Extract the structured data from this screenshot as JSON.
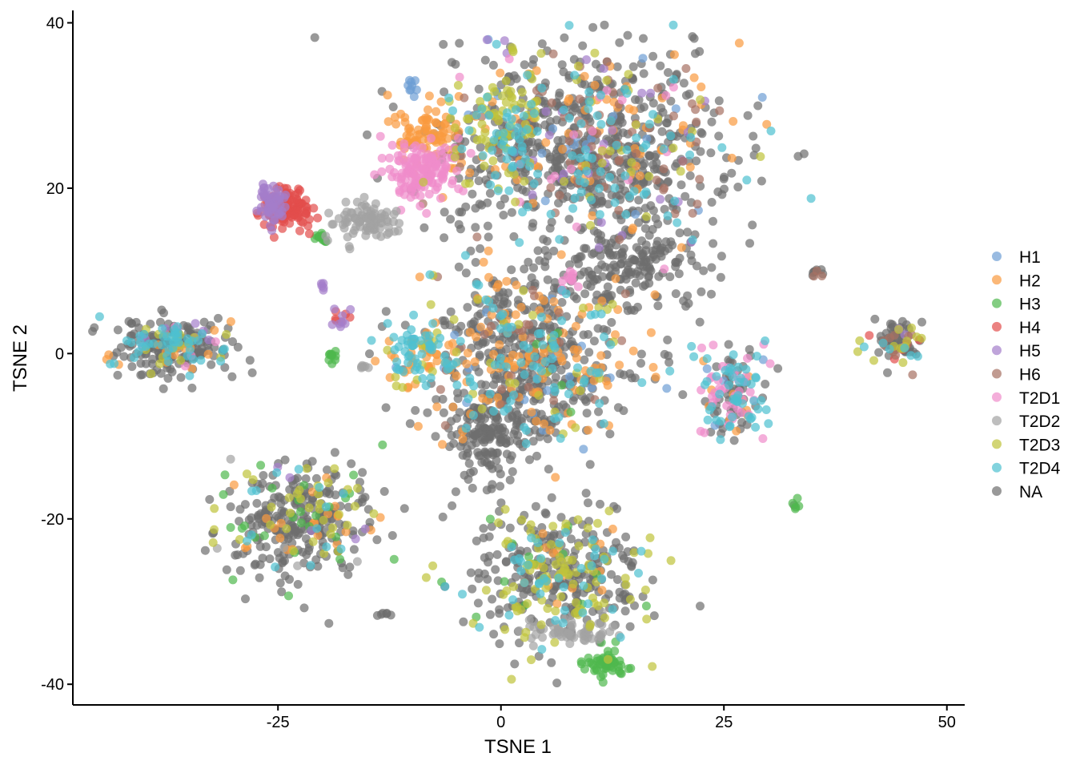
{
  "chart_data": {
    "type": "scatter",
    "title": "",
    "xlabel": "TSNE 1",
    "ylabel": "TSNE 2",
    "xlim": [
      -48,
      52
    ],
    "ylim": [
      -42.5,
      41.5
    ],
    "x_ticks": [
      -25,
      0,
      25,
      50
    ],
    "y_ticks": [
      -40,
      -20,
      0,
      20,
      40
    ],
    "x_tick_labels": [
      "-25",
      "0",
      "25",
      "50"
    ],
    "y_tick_labels": [
      "-40",
      "-20",
      "0",
      "20",
      "40"
    ],
    "grid": false,
    "legend_position": "right",
    "point_alpha": 0.7,
    "series": [
      {
        "name": "H1",
        "color": "#6d9ed4"
      },
      {
        "name": "H2",
        "color": "#f99a3e"
      },
      {
        "name": "H3",
        "color": "#4fb84d"
      },
      {
        "name": "H4",
        "color": "#e24d4b"
      },
      {
        "name": "H5",
        "color": "#a47dcb"
      },
      {
        "name": "H6",
        "color": "#a77062"
      },
      {
        "name": "T2D1",
        "color": "#ef8ccb"
      },
      {
        "name": "T2D2",
        "color": "#a2a2a2"
      },
      {
        "name": "T2D3",
        "color": "#bfc33b"
      },
      {
        "name": "T2D4",
        "color": "#4dc0d0"
      },
      {
        "name": "NA",
        "color": "#6e6e6e"
      }
    ],
    "clusters": [
      {
        "x": 10,
        "y": 25,
        "sx": 8,
        "sy": 6,
        "n": 900,
        "mix": {
          "NA": 0.62,
          "H2": 0.08,
          "T2D4": 0.1,
          "T2D3": 0.05,
          "H6": 0.08,
          "H1": 0.02,
          "T2D1": 0.02,
          "H5": 0.03
        }
      },
      {
        "x": 0,
        "y": 27,
        "sx": 2.5,
        "sy": 4,
        "n": 120,
        "mix": {
          "T2D3": 0.45,
          "T2D4": 0.2,
          "NA": 0.35
        }
      },
      {
        "x": 14,
        "y": 11,
        "sx": 4,
        "sy": 2.5,
        "n": 180,
        "mix": {
          "NA": 1.0
        }
      },
      {
        "x": 3,
        "y": 0,
        "sx": 6,
        "sy": 5,
        "n": 650,
        "mix": {
          "NA": 0.55,
          "T2D4": 0.12,
          "H2": 0.2,
          "T2D3": 0.05,
          "H1": 0.03,
          "H3": 0.02,
          "H6": 0.03
        }
      },
      {
        "x": -1,
        "y": -10,
        "sx": 2.5,
        "sy": 3,
        "n": 180,
        "mix": {
          "NA": 1.0
        }
      },
      {
        "x": -9,
        "y": 0,
        "sx": 2,
        "sy": 2,
        "n": 90,
        "mix": {
          "T2D4": 0.55,
          "T2D3": 0.15,
          "H2": 0.3
        }
      },
      {
        "x": -9,
        "y": 22,
        "sx": 2.2,
        "sy": 1.8,
        "n": 150,
        "mix": {
          "T2D1": 1.0
        }
      },
      {
        "x": -8,
        "y": 26,
        "sx": 1.8,
        "sy": 1.8,
        "n": 80,
        "mix": {
          "H2": 1.0
        }
      },
      {
        "x": -24,
        "y": 17.5,
        "sx": 1.4,
        "sy": 1.3,
        "n": 120,
        "mix": {
          "H4": 1.0
        }
      },
      {
        "x": -26,
        "y": 18,
        "sx": 0.8,
        "sy": 1.2,
        "n": 60,
        "mix": {
          "H5": 1.0
        }
      },
      {
        "x": -15,
        "y": 16,
        "sx": 1.8,
        "sy": 1.0,
        "n": 90,
        "mix": {
          "T2D2": 1.0
        }
      },
      {
        "x": -37,
        "y": 1,
        "sx": 3.5,
        "sy": 1.6,
        "n": 260,
        "mix": {
          "NA": 0.65,
          "T2D4": 0.2,
          "H2": 0.05,
          "T2D3": 0.05,
          "H5": 0.02,
          "T2D1": 0.03
        }
      },
      {
        "x": -23,
        "y": -20,
        "sx": 4,
        "sy": 3.5,
        "n": 350,
        "mix": {
          "NA": 0.62,
          "H3": 0.1,
          "T2D3": 0.1,
          "H2": 0.06,
          "T2D4": 0.06,
          "H5": 0.03,
          "T2D2": 0.03
        }
      },
      {
        "x": 7,
        "y": -27,
        "sx": 5,
        "sy": 4,
        "n": 420,
        "mix": {
          "NA": 0.55,
          "T2D3": 0.28,
          "T2D4": 0.08,
          "H2": 0.05,
          "H3": 0.04
        }
      },
      {
        "x": 12,
        "y": -37.5,
        "sx": 1.2,
        "sy": 0.8,
        "n": 50,
        "mix": {
          "H3": 1.0
        }
      },
      {
        "x": 8,
        "y": -33.5,
        "sx": 2.5,
        "sy": 0.8,
        "n": 60,
        "mix": {
          "T2D2": 1.0
        }
      },
      {
        "x": 26,
        "y": -5,
        "sx": 1.8,
        "sy": 3,
        "n": 150,
        "mix": {
          "NA": 0.35,
          "T2D1": 0.3,
          "T2D4": 0.25,
          "H2": 0.05,
          "H1": 0.05
        }
      },
      {
        "x": 44.5,
        "y": 1.5,
        "sx": 1.6,
        "sy": 1.4,
        "n": 90,
        "mix": {
          "NA": 0.55,
          "T2D3": 0.2,
          "H6": 0.1,
          "H5": 0.05,
          "H4": 0.05,
          "T2D4": 0.05
        }
      },
      {
        "x": -20,
        "y": 14,
        "sx": 0.3,
        "sy": 0.4,
        "n": 12,
        "mix": {
          "H3": 1.0
        }
      },
      {
        "x": -18,
        "y": 4,
        "sx": 0.6,
        "sy": 0.6,
        "n": 14,
        "mix": {
          "H5": 0.6,
          "H4": 0.4
        }
      },
      {
        "x": -19,
        "y": -0.3,
        "sx": 0.3,
        "sy": 0.5,
        "n": 10,
        "mix": {
          "H3": 1.0
        }
      },
      {
        "x": -10,
        "y": 32.5,
        "sx": 0.3,
        "sy": 0.4,
        "n": 8,
        "mix": {
          "H1": 1.0
        }
      },
      {
        "x": 35.5,
        "y": 9.8,
        "sx": 0.5,
        "sy": 0.3,
        "n": 10,
        "mix": {
          "NA": 0.5,
          "H6": 0.3,
          "H1": 0.2
        }
      },
      {
        "x": 33,
        "y": -18.5,
        "sx": 0.2,
        "sy": 0.4,
        "n": 6,
        "mix": {
          "NA": 0.5,
          "H3": 0.5
        }
      },
      {
        "x": 1,
        "y": 37,
        "sx": 0.3,
        "sy": 0.5,
        "n": 6,
        "mix": {
          "H5": 0.3,
          "T2D3": 0.4,
          "NA": 0.3
        }
      },
      {
        "x": -20,
        "y": 8,
        "sx": 0.2,
        "sy": 0.3,
        "n": 5,
        "mix": {
          "H5": 1.0
        }
      },
      {
        "x": -15.5,
        "y": -1.6,
        "sx": 0.3,
        "sy": 0.2,
        "n": 6,
        "mix": {
          "T2D2": 1.0
        }
      },
      {
        "x": 7.5,
        "y": 9,
        "sx": 0.7,
        "sy": 0.6,
        "n": 12,
        "mix": {
          "T2D1": 1.0
        }
      },
      {
        "x": -13,
        "y": -31.5,
        "sx": 0.5,
        "sy": 0.2,
        "n": 6,
        "mix": {
          "NA": 1.0
        }
      }
    ]
  },
  "legend": {
    "title": "",
    "items": [
      "H1",
      "H2",
      "H3",
      "H4",
      "H5",
      "H6",
      "T2D1",
      "T2D2",
      "T2D3",
      "T2D4",
      "NA"
    ]
  }
}
